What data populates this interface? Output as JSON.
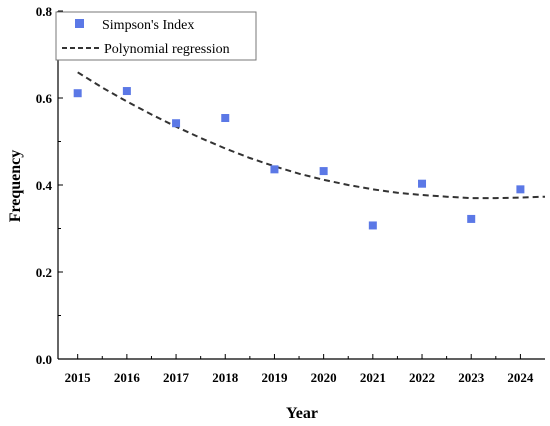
{
  "chart_data": {
    "type": "scatter",
    "xlabel": "Year",
    "ylabel": "Frequency",
    "xlim": [
      2014.6,
      2024.5
    ],
    "ylim": [
      0.0,
      0.8
    ],
    "x_ticks": [
      "2015",
      "2016",
      "2017",
      "2018",
      "2019",
      "2020",
      "2021",
      "2022",
      "2023",
      "2024"
    ],
    "y_ticks": [
      "0.0",
      "0.2",
      "0.4",
      "0.6",
      "0.8"
    ],
    "grid": false,
    "legend_position": "top-left",
    "series": [
      {
        "name": "Simpson's Index",
        "kind": "scatter",
        "marker": "square",
        "color": "#5b78e6",
        "x": [
          2015,
          2016,
          2017,
          2018,
          2019,
          2020,
          2021,
          2022,
          2023,
          2024
        ],
        "y": [
          0.611,
          0.616,
          0.542,
          0.554,
          0.436,
          0.432,
          0.307,
          0.403,
          0.322,
          0.39
        ]
      },
      {
        "name": "Polynomial regression",
        "kind": "line",
        "style": "dashed",
        "color": "#333333",
        "x": [
          2015,
          2015.5,
          2016,
          2016.5,
          2017,
          2017.5,
          2018,
          2018.5,
          2019,
          2019.5,
          2020,
          2020.5,
          2021,
          2021.5,
          2022,
          2022.5,
          2023,
          2023.5,
          2024,
          2024.5
        ],
        "y": [
          0.659,
          0.624,
          0.592,
          0.562,
          0.534,
          0.508,
          0.484,
          0.462,
          0.443,
          0.426,
          0.412,
          0.4,
          0.39,
          0.382,
          0.377,
          0.373,
          0.37,
          0.37,
          0.371,
          0.373
        ]
      }
    ]
  }
}
